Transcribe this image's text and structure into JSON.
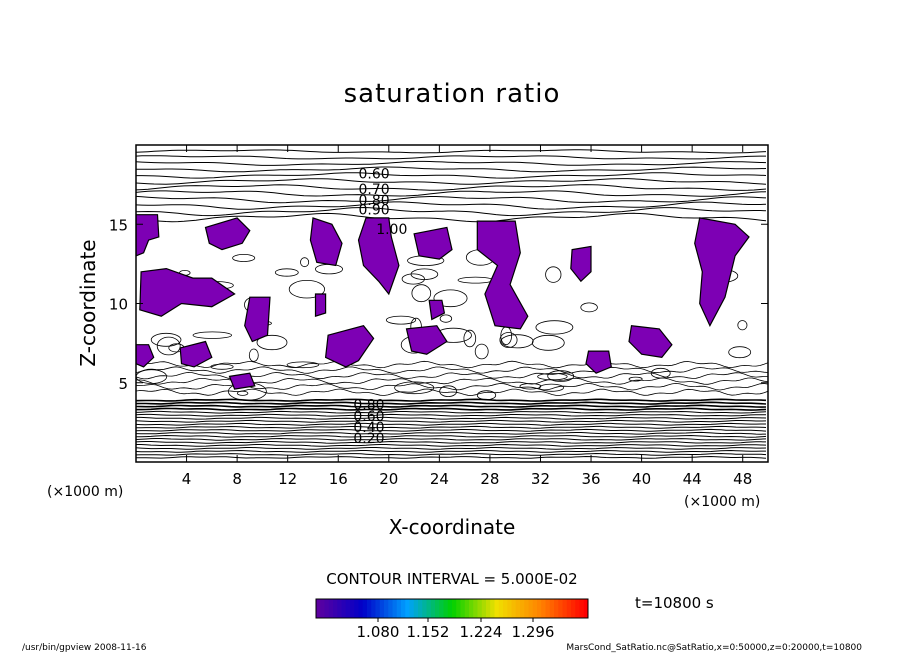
{
  "chart_data": {
    "type": "contour",
    "title": "saturation ratio",
    "xlabel": "X-coordinate",
    "ylabel": "Z-coordinate",
    "x_unit": "(×1000 m)",
    "y_unit": "(×1000 m)",
    "xlim": [
      0,
      50
    ],
    "ylim": [
      0,
      20
    ],
    "x_ticks": [
      "4",
      "8",
      "12",
      "16",
      "20",
      "24",
      "28",
      "32",
      "36",
      "40",
      "44",
      "48"
    ],
    "y_ticks": [
      "5",
      "10",
      "15"
    ],
    "contour_interval_text": "CONTOUR INTERVAL = 5.000E-02",
    "contour_labels": [
      "0.60",
      "0.70",
      "0.80",
      "0.90",
      "1.00",
      "0.20",
      "0.40",
      "0.60",
      "0.80"
    ],
    "fill_threshold": 1.0,
    "fill_color": "#7d00b4",
    "colorbar": {
      "tick_labels": [
        "1.080",
        "1.152",
        "1.224",
        "1.296"
      ],
      "colors": [
        "#5c00a0",
        "#0000c8",
        "#00a0ff",
        "#00d000",
        "#f0e000",
        "#ff8000",
        "#ff0000"
      ]
    },
    "time_label": "t=10800 s",
    "grid": false,
    "legend": "none"
  },
  "footer": {
    "left": "/usr/bin/gpview   2008-11-16",
    "right": "MarsCond_SatRatio.nc@SatRatio,x=0:50000,z=0:20000,t=10800"
  }
}
